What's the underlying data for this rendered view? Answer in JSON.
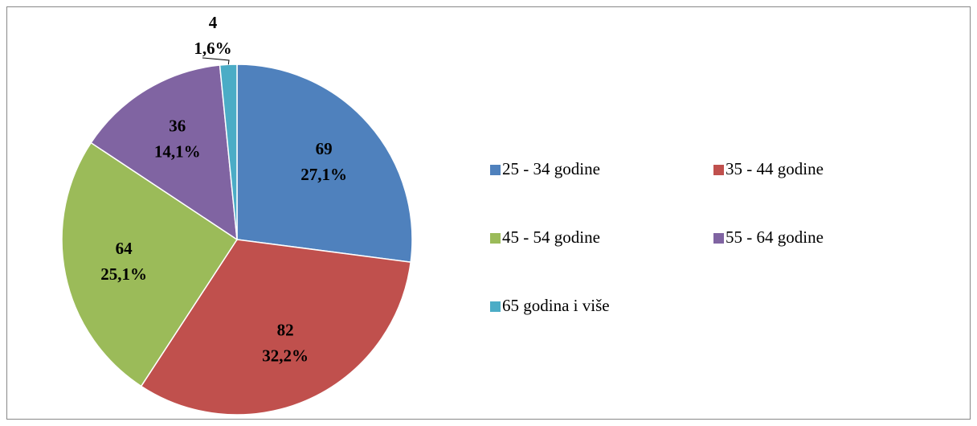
{
  "chart_data": {
    "type": "pie",
    "categories": [
      "25 - 34 godine",
      "35 - 44 godine",
      "45 - 54 godine",
      "55 - 64 godine",
      "65 godina i više"
    ],
    "values": [
      69,
      82,
      64,
      36,
      4
    ],
    "percentages": [
      27.1,
      32.2,
      25.1,
      14.1,
      1.6
    ],
    "percentage_labels": [
      "27,1%",
      "32,2%",
      "25,1%",
      "14,1%",
      "1,6%"
    ],
    "colors": [
      "#4f81bd",
      "#c0504d",
      "#9bbb59",
      "#8064a2",
      "#4bacc6"
    ],
    "legend": "right"
  }
}
